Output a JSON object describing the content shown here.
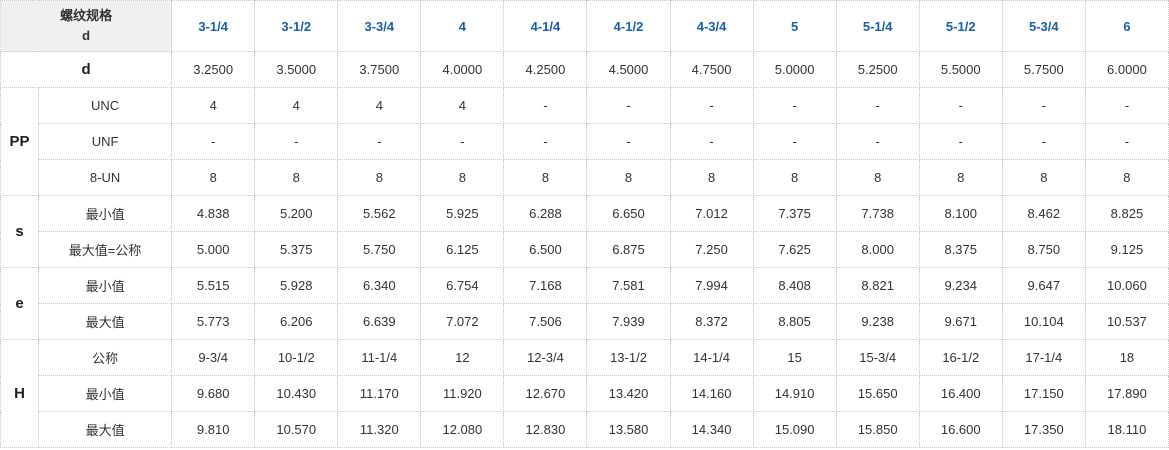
{
  "header": {
    "corner_line1": "螺纹规格",
    "corner_line2": "d",
    "sizes": [
      "3-1/4",
      "3-1/2",
      "3-3/4",
      "4",
      "4-1/4",
      "4-1/2",
      "4-3/4",
      "5",
      "5-1/4",
      "5-1/2",
      "5-3/4",
      "6"
    ]
  },
  "rows": {
    "d": {
      "label": "d",
      "values": [
        "3.2500",
        "3.5000",
        "3.7500",
        "4.0000",
        "4.2500",
        "4.5000",
        "4.7500",
        "5.0000",
        "5.2500",
        "5.5000",
        "5.7500",
        "6.0000"
      ]
    },
    "pp": {
      "group": "PP",
      "unc": {
        "label": "UNC",
        "values": [
          "4",
          "4",
          "4",
          "4",
          "-",
          "-",
          "-",
          "-",
          "-",
          "-",
          "-",
          "-"
        ]
      },
      "unf": {
        "label": "UNF",
        "values": [
          "-",
          "-",
          "-",
          "-",
          "-",
          "-",
          "-",
          "-",
          "-",
          "-",
          "-",
          "-"
        ]
      },
      "un8": {
        "label": "8-UN",
        "values": [
          "8",
          "8",
          "8",
          "8",
          "8",
          "8",
          "8",
          "8",
          "8",
          "8",
          "8",
          "8"
        ]
      }
    },
    "s": {
      "group": "s",
      "min": {
        "label": "最小值",
        "values": [
          "4.838",
          "5.200",
          "5.562",
          "5.925",
          "6.288",
          "6.650",
          "7.012",
          "7.375",
          "7.738",
          "8.100",
          "8.462",
          "8.825"
        ]
      },
      "max": {
        "label": "最大值=公称",
        "values": [
          "5.000",
          "5.375",
          "5.750",
          "6.125",
          "6.500",
          "6.875",
          "7.250",
          "7.625",
          "8.000",
          "8.375",
          "8.750",
          "9.125"
        ]
      }
    },
    "e": {
      "group": "e",
      "min": {
        "label": "最小值",
        "values": [
          "5.515",
          "5.928",
          "6.340",
          "6.754",
          "7.168",
          "7.581",
          "7.994",
          "8.408",
          "8.821",
          "9.234",
          "9.647",
          "10.060"
        ]
      },
      "max": {
        "label": "最大值",
        "values": [
          "5.773",
          "6.206",
          "6.639",
          "7.072",
          "7.506",
          "7.939",
          "8.372",
          "8.805",
          "9.238",
          "9.671",
          "10.104",
          "10.537"
        ]
      }
    },
    "h": {
      "group": "H",
      "nom": {
        "label": "公称",
        "values": [
          "9-3/4",
          "10-1/2",
          "11-1/4",
          "12",
          "12-3/4",
          "13-1/2",
          "14-1/4",
          "15",
          "15-3/4",
          "16-1/2",
          "17-1/4",
          "18"
        ]
      },
      "min": {
        "label": "最小值",
        "values": [
          "9.680",
          "10.430",
          "11.170",
          "11.920",
          "12.670",
          "13.420",
          "14.160",
          "14.910",
          "15.650",
          "16.400",
          "17.150",
          "17.890"
        ]
      },
      "max": {
        "label": "最大值",
        "values": [
          "9.810",
          "10.570",
          "11.320",
          "12.080",
          "12.830",
          "13.580",
          "14.340",
          "15.090",
          "15.850",
          "16.600",
          "17.350",
          "18.110"
        ]
      }
    }
  }
}
